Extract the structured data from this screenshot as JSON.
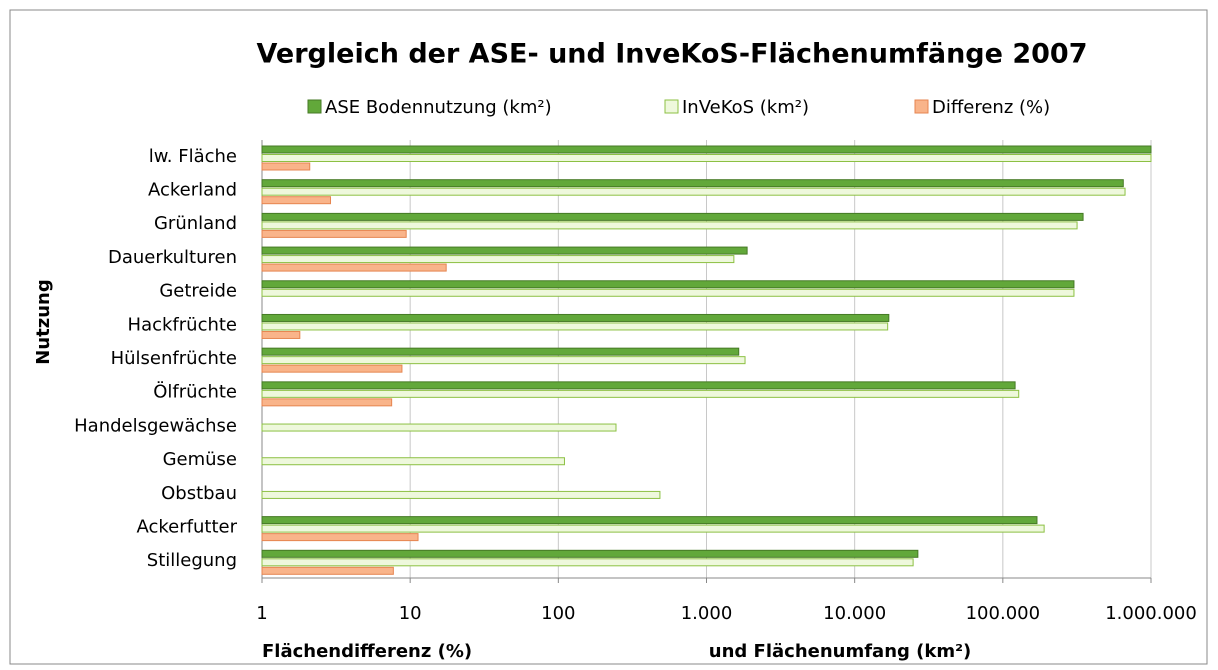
{
  "chart_data": {
    "type": "bar",
    "orientation": "horizontal",
    "title": "Vergleich der ASE- und InveKoS-Flächenumfänge 2007",
    "ylabel": "Nutzung",
    "xlabel_left": "Flächendifferenz (%)",
    "xlabel_right": "und Flächenumfang (km²)",
    "categories": [
      "lw. Fläche",
      "Ackerland",
      "Grünland",
      "Dauerkulturen",
      "Getreide ",
      "Hackfrüchte",
      "Hülsenfrüchte",
      "Ölfrüchte",
      "Handelsgewächse",
      "Gemüse",
      "Obstbau",
      "Ackerfutter",
      "Stillegung"
    ],
    "series": [
      {
        "name": "ASE Bodennutzung (km²)",
        "color": "#62a83a",
        "edgecolor": "#467a25",
        "values": [
          1000000,
          650000,
          348000,
          1880,
          302000,
          17000,
          1650,
          121000,
          null,
          null,
          null,
          170000,
          26700
        ]
      },
      {
        "name": "InVeKoS (km²)",
        "color": "#eef8dc",
        "edgecolor": "#8cc043",
        "values": [
          1000000,
          668000,
          317000,
          1530,
          302000,
          16700,
          1820,
          128000,
          245,
          110,
          485,
          190000,
          24800
        ]
      },
      {
        "name": "Differenz (%)",
        "color": "#f9b48a",
        "edgecolor": "#e68550",
        "values": [
          2.1,
          2.9,
          9.4,
          17.5,
          null,
          1.8,
          8.8,
          7.5,
          null,
          null,
          null,
          11.3,
          7.7
        ]
      }
    ],
    "xscale": "log",
    "xlim": [
      1,
      1000000
    ],
    "xticks": [
      1,
      10,
      100,
      {
        "value": 1000,
        "label": "1.000"
      },
      {
        "value": 10000,
        "label": "10.000"
      },
      {
        "value": 100000,
        "label": "100.000"
      },
      {
        "value": 1000000,
        "label": "1.000.000"
      }
    ],
    "grid": true,
    "legend": "top"
  }
}
